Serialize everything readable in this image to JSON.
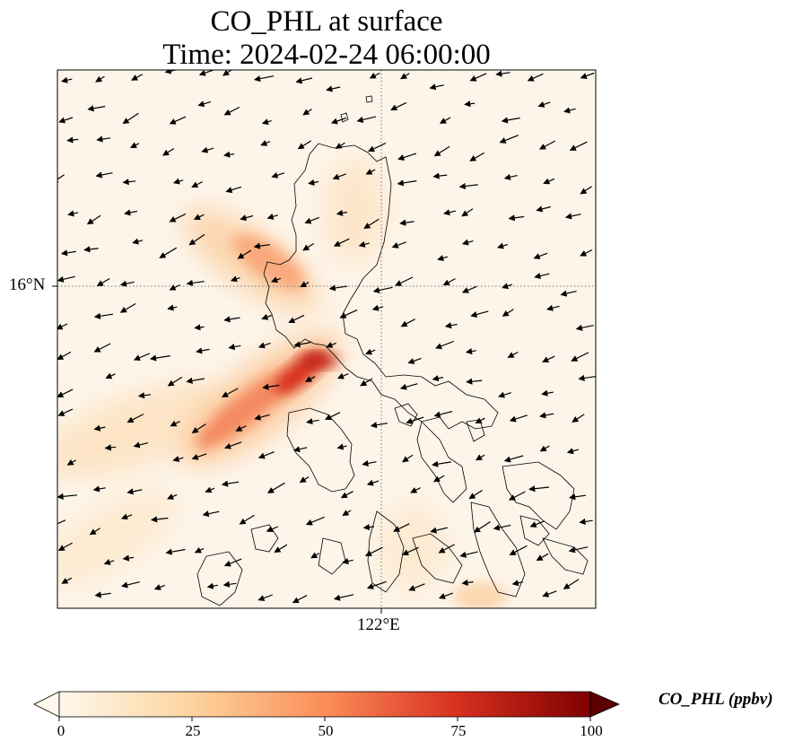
{
  "title": {
    "line1": "CO_PHL at surface",
    "line2": "Time: 2024-02-24 06:00:00"
  },
  "map": {
    "lat_gridline_label": "16°N",
    "lon_gridline_label": "122°E",
    "land_color": "#fdf5ea",
    "coastline_color": "#000000"
  },
  "colorbar": {
    "label": "CO_PHL (ppbv)",
    "ticks": [
      "0",
      "25",
      "50",
      "75",
      "100"
    ],
    "range": [
      0,
      100
    ],
    "extend": "both",
    "colormap": "OrRd",
    "stops": [
      "#fff7ec",
      "#fdd49e",
      "#fc8d59",
      "#d7301f",
      "#7f0000"
    ]
  },
  "plume": {
    "source_label": "",
    "peak_value_ppbv": 90
  }
}
